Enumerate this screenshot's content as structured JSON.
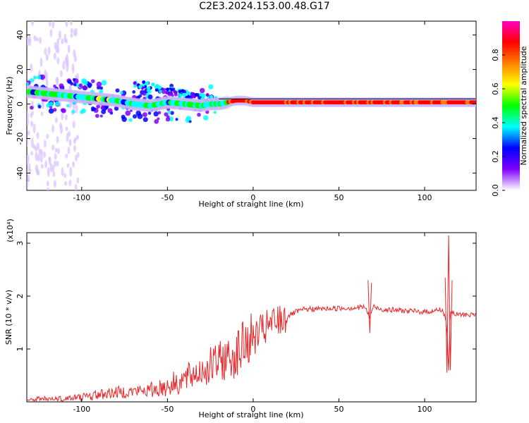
{
  "title": "C2E3.2024.153.00.48.G17",
  "chart_data": [
    {
      "type": "heatmap",
      "xlabel": "Height of straight line (km)",
      "ylabel": "Frequency (Hz)",
      "xlim": [
        -132,
        130
      ],
      "ylim": [
        -50,
        48
      ],
      "x_ticks": [
        -100,
        -50,
        0,
        50,
        100
      ],
      "y_ticks": [
        -40,
        -20,
        0,
        20,
        40
      ],
      "colorbar": {
        "label": "Normalized spectral amplitude",
        "range": [
          0,
          1
        ],
        "ticks": [
          "0.0",
          "0.2",
          "0.4",
          "0.6",
          "0.8"
        ],
        "colors": [
          "#ffffff",
          "#8000ff",
          "#0000ff",
          "#00ffff",
          "#00ff00",
          "#ffff00",
          "#ff8000",
          "#ff0000",
          "#ff00c0"
        ]
      },
      "frequency_track": {
        "x": [
          -130,
          -120,
          -110,
          -100,
          -90,
          -80,
          -70,
          -60,
          -50,
          -40,
          -30,
          -25,
          -20,
          -15,
          -10,
          -5,
          0,
          20,
          40,
          60,
          80,
          100,
          110,
          120,
          130
        ],
        "y": [
          7,
          6,
          5,
          4,
          3,
          2,
          0,
          -1,
          1,
          0,
          -1,
          0,
          0,
          1,
          2,
          2,
          1,
          1,
          1,
          1,
          1,
          1,
          1,
          1,
          1
        ]
      },
      "reference_line_hz": 3
    },
    {
      "type": "line",
      "xlabel": "Height of straight line (km)",
      "ylabel": "SNR (10 * v/v)",
      "y_multiplier": "(x10⁴)",
      "xlim": [
        -132,
        130
      ],
      "ylim": [
        0,
        3.2
      ],
      "x_ticks": [
        -100,
        -50,
        0,
        50,
        100
      ],
      "y_ticks": [
        1,
        2,
        3
      ],
      "line_color": "#e8282a",
      "series": [
        {
          "x": [
            -132,
            -110,
            -100,
            -90,
            -80,
            -70,
            -60,
            -50,
            -40,
            -30,
            -20,
            -10,
            -5,
            0,
            10,
            20,
            25,
            30,
            40,
            50,
            60,
            65,
            68,
            70,
            75,
            80,
            90,
            100,
            105,
            110,
            112,
            113,
            114,
            115,
            118,
            120,
            130
          ],
          "y": [
            0.03,
            0.05,
            0.08,
            0.14,
            0.18,
            0.2,
            0.22,
            0.3,
            0.42,
            0.6,
            0.75,
            0.9,
            1.1,
            1.2,
            1.45,
            1.62,
            1.7,
            1.75,
            1.76,
            1.77,
            1.78,
            1.8,
            1.6,
            1.8,
            1.75,
            1.74,
            1.72,
            1.7,
            1.72,
            1.75,
            1.6,
            1.4,
            0.6,
            1.7,
            1.65,
            1.65,
            1.65
          ]
        }
      ]
    }
  ]
}
